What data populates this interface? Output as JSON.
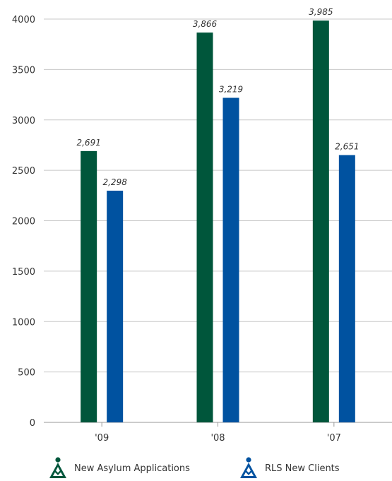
{
  "colors": {
    "series_1": "#00563b",
    "series_2": "#0052a0",
    "grid": "#c8c8c8",
    "axis": "#999999"
  },
  "chart_data": {
    "type": "bar",
    "title": "",
    "xlabel": "",
    "ylabel": "",
    "categories": [
      "'09",
      "'08",
      "'07"
    ],
    "series": [
      {
        "name": "New Asylum Applications",
        "values": [
          2691,
          3866,
          3985
        ],
        "labels": [
          "2,691",
          "3,866",
          "3,985"
        ],
        "color": "#00563b",
        "icon": "person-triangle-icon"
      },
      {
        "name": "RLS New Clients",
        "values": [
          2298,
          3219,
          2651
        ],
        "labels": [
          "2,298",
          "3,219",
          "2,651"
        ],
        "color": "#0052a0",
        "icon": "person-triangle-icon"
      }
    ],
    "ylim": [
      0,
      4000
    ],
    "yticks": [
      0,
      500,
      1000,
      1500,
      2000,
      2500,
      3000,
      3500,
      4000
    ],
    "grid": true,
    "legend_position": "bottom"
  }
}
